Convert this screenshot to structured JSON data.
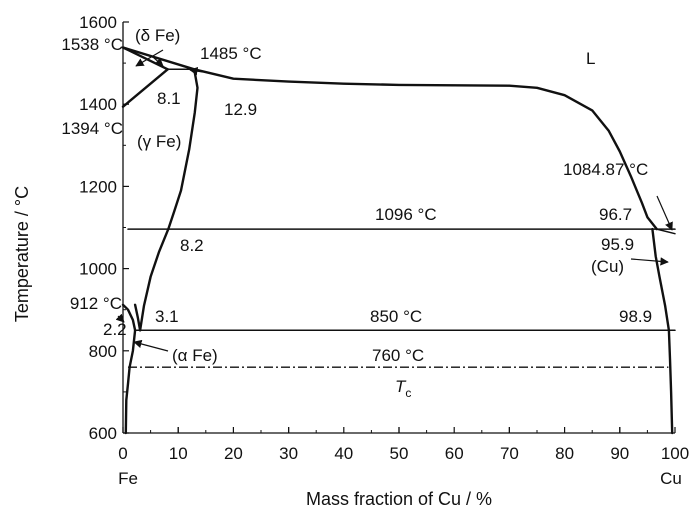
{
  "chart_data": {
    "type": "line",
    "title": "",
    "xlabel": "Mass fraction of Cu / %",
    "ylabel": "Temperature / °C",
    "xlim": [
      0,
      100
    ],
    "ylim": [
      600,
      1600
    ],
    "x_ticks": [
      0,
      10,
      20,
      30,
      40,
      50,
      60,
      70,
      80,
      90,
      100
    ],
    "y_ticks": [
      600,
      800,
      1000,
      1200,
      1400,
      1600
    ],
    "x_end_labels": {
      "left": "Fe",
      "right": "Cu"
    },
    "grid": false,
    "series": [
      {
        "x": [
          0,
          8.1
        ],
        "y": [
          1538,
          1485
        ]
      },
      {
        "x": [
          0,
          8.1
        ],
        "y": [
          1394,
          1485
        ]
      },
      {
        "x": [
          8.1,
          12.9
        ],
        "y": [
          1485,
          1485
        ]
      },
      {
        "x": [
          0,
          12.9,
          20,
          30,
          40,
          50,
          60,
          70,
          75,
          80,
          85,
          88,
          90,
          92,
          94,
          95,
          96.7
        ],
        "y": [
          1538,
          1485,
          1462,
          1455,
          1450,
          1447,
          1446,
          1445,
          1440,
          1422,
          1385,
          1335,
          1285,
          1225,
          1160,
          1125,
          1096
        ]
      },
      {
        "x": [
          96.7,
          100
        ],
        "y": [
          1096,
          1084.87
        ]
      },
      {
        "x": [
          12.9,
          13.5,
          13.0,
          12.0,
          10.5,
          9.3,
          8.2
        ],
        "y": [
          1485,
          1440,
          1380,
          1290,
          1190,
          1140,
          1096
        ]
      },
      {
        "x": [
          8.2,
          6.5,
          5.0,
          3.8,
          3.1
        ],
        "y": [
          1096,
          1040,
          980,
          910,
          850
        ]
      },
      {
        "x": [
          0,
          0.9,
          1.8,
          2.2
        ],
        "y": [
          912,
          900,
          875,
          850
        ]
      },
      {
        "x": [
          3.1,
          2.7,
          2.2
        ],
        "y": [
          850,
          880,
          912
        ]
      },
      {
        "x": [
          2.2,
          1.8,
          1.2,
          0.9,
          0.6,
          0.5
        ],
        "y": [
          850,
          800,
          760,
          720,
          680,
          600
        ]
      },
      {
        "x": [
          95.9,
          96.5,
          97.2,
          98.2,
          98.9
        ],
        "y": [
          1096,
          1030,
          980,
          910,
          850
        ]
      },
      {
        "x": [
          98.9,
          99.1,
          99.3,
          99.5
        ],
        "y": [
          850,
          780,
          700,
          600
        ]
      },
      {
        "x": [
          0.9,
          100
        ],
        "y": [
          1096,
          1096
        ]
      },
      {
        "x": [
          2.2,
          100
        ],
        "y": [
          850,
          850
        ]
      }
    ],
    "reference_lines": [
      {
        "x": [
          0.9,
          98.8
        ],
        "y": [
          760,
          760
        ],
        "style": "dash-dot"
      }
    ],
    "annotations": {
      "t1538": "1538 °C",
      "t1394": "1394 °C",
      "t912": "912 °C",
      "v22": "2.2",
      "delta_fe": "(δ Fe)",
      "gamma_fe": "(γ Fe)",
      "alpha_fe": "(α Fe)",
      "cu_phase": "(Cu)",
      "t1485": "1485 °C",
      "v81": "8.1",
      "v129": "12.9",
      "v82": "8.2",
      "v31": "3.1",
      "liquid": "L",
      "t1096": "1096 °C",
      "t850": "850 °C",
      "t760": "760 °C",
      "tc": "T",
      "tc_sub": "c",
      "t108487": "1084.87 °C",
      "v967": "96.7",
      "v959": "95.9",
      "v989": "98.9"
    }
  }
}
